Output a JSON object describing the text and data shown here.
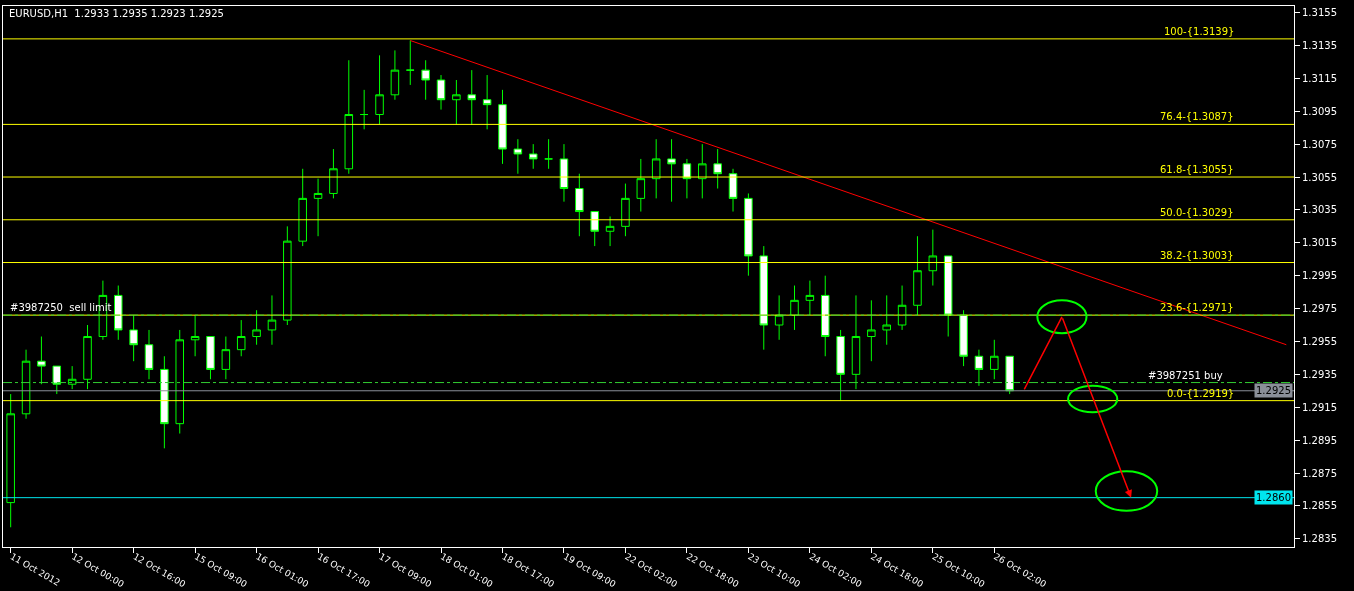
{
  "chart_data": {
    "type": "candlestick",
    "title": "EURUSD,H1  1.2933 1.2935 1.2923 1.2925",
    "categories": [
      "11 Oct 2012",
      null,
      null,
      null,
      "12 Oct 00:00",
      null,
      null,
      null,
      "12 Oct 16:00",
      null,
      null,
      null,
      "15 Oct 09:00",
      null,
      null,
      null,
      "16 Oct 01:00",
      null,
      null,
      null,
      "16 Oct 17:00",
      null,
      null,
      null,
      "17 Oct 09:00",
      null,
      null,
      null,
      "18 Oct 01:00",
      null,
      null,
      null,
      "18 Oct 17:00",
      null,
      null,
      null,
      "19 Oct 09:00",
      null,
      null,
      null,
      "22 Oct 02:00",
      null,
      null,
      null,
      "22 Oct 18:00",
      null,
      null,
      null,
      "23 Oct 10:00",
      null,
      null,
      null,
      "24 Oct 02:00",
      null,
      null,
      null,
      "24 Oct 18:00",
      null,
      null,
      null,
      "25 Oct 10:00",
      null,
      null,
      null,
      "26 Oct 02:00",
      null,
      null,
      null,
      null,
      null,
      null,
      null,
      null,
      null,
      null,
      null,
      null,
      null,
      null,
      null,
      null,
      null,
      null,
      null
    ],
    "color": "#00ff00",
    "ohlc": [
      [
        1.2857,
        1.2923,
        1.2842,
        1.2911
      ],
      [
        1.2911,
        1.295,
        1.2908,
        1.2943
      ],
      [
        1.2943,
        1.2958,
        1.2929,
        1.294
      ],
      [
        1.294,
        1.294,
        1.2923,
        1.2929
      ],
      [
        1.2929,
        1.294,
        1.2926,
        1.2932
      ],
      [
        1.2932,
        1.2965,
        1.2926,
        1.2958
      ],
      [
        1.2958,
        1.2992,
        1.2956,
        1.2983
      ],
      [
        1.2983,
        1.2989,
        1.2956,
        1.2962
      ],
      [
        1.2962,
        1.2971,
        1.2943,
        1.2953
      ],
      [
        1.2953,
        1.2962,
        1.2932,
        1.2938
      ],
      [
        1.2938,
        1.2946,
        1.289,
        1.2905
      ],
      [
        1.2905,
        1.2962,
        1.2899,
        1.2956
      ],
      [
        1.2956,
        1.2971,
        1.2946,
        1.2958
      ],
      [
        1.2958,
        1.2958,
        1.2932,
        1.2938
      ],
      [
        1.2938,
        1.2958,
        1.2932,
        1.295
      ],
      [
        1.295,
        1.2968,
        1.2946,
        1.2958
      ],
      [
        1.2958,
        1.2974,
        1.2953,
        1.2962
      ],
      [
        1.2962,
        1.2983,
        1.2953,
        1.2968
      ],
      [
        1.2968,
        1.3025,
        1.2965,
        1.3016
      ],
      [
        1.3016,
        1.306,
        1.3013,
        1.3042
      ],
      [
        1.3042,
        1.3054,
        1.3019,
        1.3045
      ],
      [
        1.3045,
        1.3072,
        1.3042,
        1.306
      ],
      [
        1.306,
        1.3126,
        1.3057,
        1.3093
      ],
      [
        1.3093,
        1.3108,
        1.3084,
        1.3093
      ],
      [
        1.3093,
        1.3129,
        1.3087,
        1.3105
      ],
      [
        1.3105,
        1.3132,
        1.3102,
        1.312
      ],
      [
        1.312,
        1.3138,
        1.3111,
        1.312
      ],
      [
        1.312,
        1.3126,
        1.3102,
        1.3114
      ],
      [
        1.3114,
        1.3117,
        1.3096,
        1.3102
      ],
      [
        1.3102,
        1.3114,
        1.3087,
        1.3105
      ],
      [
        1.3105,
        1.312,
        1.3087,
        1.3102
      ],
      [
        1.3102,
        1.3117,
        1.3084,
        1.3099
      ],
      [
        1.3099,
        1.3108,
        1.3063,
        1.3072
      ],
      [
        1.3072,
        1.3078,
        1.3057,
        1.3069
      ],
      [
        1.3069,
        1.3075,
        1.306,
        1.3066
      ],
      [
        1.3066,
        1.3078,
        1.306,
        1.3066
      ],
      [
        1.3066,
        1.3075,
        1.304,
        1.3048
      ],
      [
        1.3048,
        1.3057,
        1.3019,
        1.3034
      ],
      [
        1.3034,
        1.3034,
        1.3013,
        1.3022
      ],
      [
        1.3022,
        1.3031,
        1.3013,
        1.3025
      ],
      [
        1.3025,
        1.3051,
        1.3019,
        1.3042
      ],
      [
        1.3042,
        1.3066,
        1.3034,
        1.3054
      ],
      [
        1.3054,
        1.3078,
        1.3042,
        1.3066
      ],
      [
        1.3066,
        1.3078,
        1.304,
        1.3063
      ],
      [
        1.3063,
        1.3066,
        1.3042,
        1.3054
      ],
      [
        1.3054,
        1.3075,
        1.3042,
        1.3063
      ],
      [
        1.3063,
        1.3072,
        1.3048,
        1.3057
      ],
      [
        1.3057,
        1.306,
        1.3034,
        1.3042
      ],
      [
        1.3042,
        1.3045,
        1.2995,
        1.3007
      ],
      [
        1.3007,
        1.3013,
        1.295,
        1.2965
      ],
      [
        1.2965,
        1.2983,
        1.2956,
        1.2971
      ],
      [
        1.2971,
        1.2989,
        1.2962,
        1.298
      ],
      [
        1.298,
        1.2992,
        1.2971,
        1.2983
      ],
      [
        1.2983,
        1.2995,
        1.2946,
        1.2958
      ],
      [
        1.2958,
        1.2962,
        1.2919,
        1.2935
      ],
      [
        1.2935,
        1.2983,
        1.2926,
        1.2958
      ],
      [
        1.2958,
        1.298,
        1.2943,
        1.2962
      ],
      [
        1.2962,
        1.2983,
        1.2953,
        1.2965
      ],
      [
        1.2965,
        1.2989,
        1.2962,
        1.2977
      ],
      [
        1.2977,
        1.3019,
        1.2971,
        1.2998
      ],
      [
        1.2998,
        1.3023,
        1.2989,
        1.3007
      ],
      [
        1.3007,
        1.3007,
        1.2958,
        1.2971
      ],
      [
        1.2971,
        1.2974,
        1.294,
        1.2946
      ],
      [
        1.2946,
        1.295,
        1.2928,
        1.2938
      ],
      [
        1.2938,
        1.2956,
        1.2932,
        1.2946
      ],
      [
        1.2946,
        1.2946,
        1.2923,
        1.2925
      ],
      null,
      null,
      null,
      null,
      null,
      null,
      null,
      null,
      null,
      null,
      null,
      null,
      null,
      null,
      null,
      null,
      null,
      null
    ],
    "series": [
      {
        "type": "line",
        "color": "#ff0000",
        "values": [
          null,
          null,
          null,
          null,
          null,
          null,
          null,
          null,
          null,
          null,
          null,
          null,
          null,
          null,
          null,
          null,
          null,
          null,
          null,
          null,
          null,
          null,
          null,
          null,
          null,
          null,
          1.3138,
          null,
          null,
          null,
          null,
          null,
          null,
          null,
          null,
          null,
          null,
          null,
          null,
          null,
          null,
          null,
          null,
          null,
          null,
          null,
          null,
          null,
          null,
          null,
          null,
          null,
          null,
          null,
          null,
          null,
          null,
          null,
          null,
          null,
          null,
          null,
          null,
          null,
          null,
          null,
          null,
          null,
          null,
          null,
          null,
          null,
          null,
          null,
          null,
          null,
          null,
          null,
          null,
          null,
          null,
          null,
          null,
          1.2953
        ]
      }
    ],
    "ylim": [
      1.283,
      1.3159
    ],
    "yticks": [
      1.2835,
      1.2855,
      1.2875,
      1.2895,
      1.2915,
      1.2935,
      1.2955,
      1.2975,
      1.2995,
      1.3015,
      1.3035,
      1.3055,
      1.3075,
      1.3095,
      1.3115,
      1.3135,
      1.3155
    ],
    "ref_lines": [
      {
        "axis": "y",
        "value": 1.3139,
        "label": "100-{1.3139}",
        "color": "#ffff00"
      },
      {
        "axis": "y",
        "value": 1.3087,
        "label": "76.4-{1.3087}",
        "color": "#ffff00"
      },
      {
        "axis": "y",
        "value": 1.3055,
        "label": "61.8-{1.3055}",
        "color": "#ffff00"
      },
      {
        "axis": "y",
        "value": 1.3029,
        "label": "50.0-{1.3029}",
        "color": "#ffff00"
      },
      {
        "axis": "y",
        "value": 1.3003,
        "label": "38.2-{1.3003}",
        "color": "#ffff00"
      },
      {
        "axis": "y",
        "value": 1.2971,
        "label": "23.6-{1.2971}",
        "color": "#ffff00"
      },
      {
        "axis": "y",
        "value": 1.2919,
        "label": "0.0-{1.2919}",
        "color": "#ffff00"
      },
      {
        "axis": "y",
        "value": 1.2971,
        "label": "#3987250  sell limit",
        "color": "#32cd32",
        "line_style": "dashdot"
      },
      {
        "axis": "y",
        "value": 1.293,
        "label": "#3987251 buy",
        "color": "#32cd32",
        "line_style": "dashdot"
      },
      {
        "axis": "y",
        "value": 1.2925,
        "label": "1.2925",
        "color": "#8a8f99",
        "line_style": "solid"
      },
      {
        "axis": "y",
        "value": 1.286,
        "label": "1.2860",
        "color": "#00e5ee",
        "line_style": "solid"
      }
    ],
    "grid": false
  }
}
